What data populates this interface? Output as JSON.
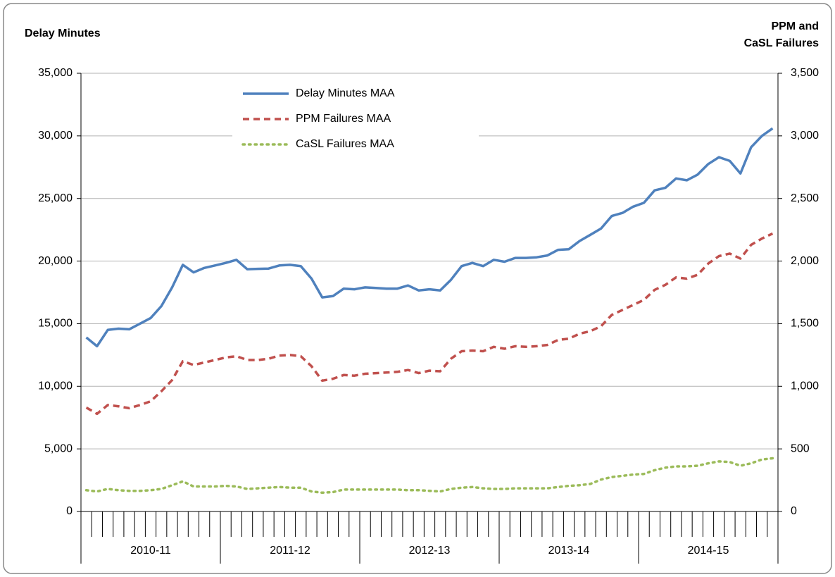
{
  "chart_data": {
    "type": "line",
    "y_label": "Delay Minutes",
    "y2_label": [
      "PPM and",
      "CaSL Failures"
    ],
    "categories": [
      null,
      null,
      null,
      null,
      null,
      null,
      null,
      null,
      null,
      null,
      null,
      null,
      null,
      null,
      null,
      null,
      null,
      null,
      null,
      null,
      null,
      null,
      null,
      null,
      null,
      null,
      null,
      null,
      null,
      null,
      null,
      null,
      null,
      null,
      null,
      null,
      null,
      null,
      null,
      null,
      null,
      null,
      null,
      null,
      null,
      null,
      null,
      null,
      null,
      null,
      null,
      null,
      null,
      null,
      null,
      null,
      null,
      null,
      null,
      null,
      null,
      null,
      null,
      null,
      null
    ],
    "groups": [
      "2010-11",
      "2011-12",
      "2012-13",
      "2013-14",
      "2014-15"
    ],
    "series": [
      {
        "name": "Delay Minutes MAA",
        "color": "#4f81bd",
        "style": "solid",
        "axis": "y",
        "values": [
          13900,
          13200,
          14500,
          14600,
          14550,
          15000,
          15450,
          16400,
          17900,
          19700,
          19100,
          19450,
          19650,
          19850,
          20100,
          19350,
          19380,
          19400,
          19650,
          19700,
          19600,
          18600,
          17100,
          17200,
          17800,
          17750,
          17900,
          17850,
          17800,
          17800,
          18050,
          17650,
          17750,
          17650,
          18500,
          19600,
          19850,
          19600,
          20100,
          19950,
          20250,
          20250,
          20300,
          20450,
          20900,
          20950,
          21600,
          22100,
          22600,
          23600,
          23850,
          24350,
          24650,
          25650,
          25850,
          26600,
          26450,
          26900,
          27750,
          28300,
          28000,
          27000,
          29100,
          30000,
          30600
        ]
      },
      {
        "name": "PPM Failures MAA",
        "color": "#c0504d",
        "style": "dashed",
        "axis": "y2",
        "values": [
          830,
          780,
          850,
          840,
          825,
          850,
          880,
          960,
          1050,
          1200,
          1170,
          1190,
          1210,
          1230,
          1240,
          1210,
          1210,
          1220,
          1245,
          1250,
          1240,
          1160,
          1045,
          1060,
          1090,
          1085,
          1100,
          1105,
          1110,
          1115,
          1130,
          1105,
          1125,
          1120,
          1220,
          1280,
          1285,
          1280,
          1315,
          1300,
          1320,
          1315,
          1320,
          1330,
          1370,
          1380,
          1420,
          1440,
          1480,
          1570,
          1610,
          1650,
          1690,
          1770,
          1810,
          1870,
          1860,
          1890,
          1980,
          2040,
          2060,
          2020,
          2130,
          2180,
          2220
        ]
      },
      {
        "name": "CaSL Failures MAA",
        "color": "#9bbb59",
        "style": "dotted",
        "axis": "y2",
        "values": [
          170,
          160,
          180,
          170,
          165,
          165,
          170,
          180,
          210,
          240,
          200,
          200,
          200,
          205,
          200,
          180,
          185,
          190,
          195,
          190,
          190,
          160,
          150,
          155,
          175,
          175,
          175,
          175,
          175,
          175,
          170,
          170,
          165,
          160,
          180,
          190,
          195,
          185,
          180,
          180,
          185,
          185,
          185,
          185,
          195,
          205,
          210,
          220,
          255,
          275,
          285,
          295,
          300,
          330,
          350,
          360,
          360,
          365,
          385,
          400,
          395,
          365,
          385,
          415,
          425
        ]
      }
    ],
    "ylim": [
      0,
      35000
    ],
    "yticks": [
      0,
      {
        "value": 5000,
        "label": "5,000"
      },
      {
        "value": 10000,
        "label": "10,000"
      },
      {
        "value": 15000,
        "label": "15,000"
      },
      {
        "value": 20000,
        "label": "20,000"
      },
      {
        "value": 25000,
        "label": "25,000"
      },
      {
        "value": 30000,
        "label": "30,000"
      },
      {
        "value": 35000,
        "label": "35,000"
      }
    ],
    "y2lim": [
      0,
      3500
    ],
    "y2ticks": [
      0,
      500,
      {
        "value": 1000,
        "label": "1,000"
      },
      {
        "value": 1500,
        "label": "1,500"
      },
      {
        "value": 2000,
        "label": "2,000"
      },
      {
        "value": 2500,
        "label": "2,500"
      },
      {
        "value": 3000,
        "label": "3,000"
      },
      {
        "value": 3500,
        "label": "3,500"
      }
    ],
    "grid": true,
    "legend": "top-center"
  }
}
